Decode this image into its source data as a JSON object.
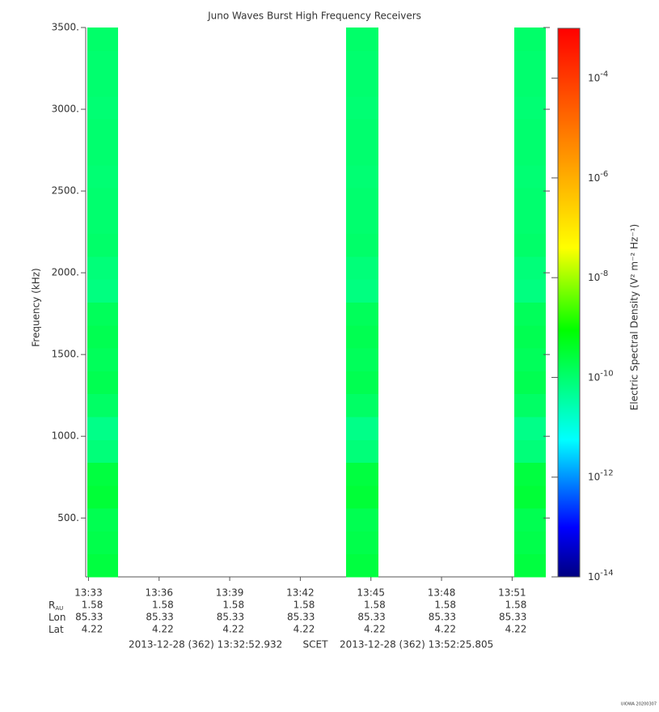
{
  "chart_data": {
    "type": "spectrogram",
    "title": "Juno Waves Burst High Frequency Receivers",
    "y_label": "Frequency (kHz)",
    "colorbar_label": "Electric Spectral Density (V² m⁻² Hz⁻¹)",
    "ylim": [
      140,
      3500
    ],
    "yticks": [
      {
        "value": 500,
        "label": "500."
      },
      {
        "value": 1000,
        "label": "1000."
      },
      {
        "value": 1500,
        "label": "1500."
      },
      {
        "value": 2000,
        "label": "2000."
      },
      {
        "value": 2500,
        "label": "2500."
      },
      {
        "value": 3000,
        "label": "3000."
      },
      {
        "value": 3500,
        "label": "3500."
      }
    ],
    "xlim": [
      812.882,
      832.43
    ],
    "xticks": [
      {
        "value": 813,
        "label": "13:33"
      },
      {
        "value": 816,
        "label": "13:36"
      },
      {
        "value": 819,
        "label": "13:39"
      },
      {
        "value": 822,
        "label": "13:42"
      },
      {
        "value": 825,
        "label": "13:45"
      },
      {
        "value": 828,
        "label": "13:48"
      },
      {
        "value": 831,
        "label": "13:51"
      }
    ],
    "zlim": [
      1e-14,
      0.001
    ],
    "zticks": [
      {
        "value": 1e-14,
        "label": "10",
        "exponent": "-14"
      },
      {
        "value": 1e-12,
        "label": "10",
        "exponent": "-12"
      },
      {
        "value": 1e-10,
        "label": "10",
        "exponent": "-10"
      },
      {
        "value": 1e-08,
        "label": "10",
        "exponent": "-8"
      },
      {
        "value": 1e-06,
        "label": "10",
        "exponent": "-6"
      },
      {
        "value": 0.0001,
        "label": "10",
        "exponent": "-4"
      }
    ],
    "freq_bins": [
      140,
      280,
      420,
      560,
      700,
      840,
      980,
      1120,
      1260,
      1400,
      1540,
      1680,
      1820,
      1960,
      2100,
      2240,
      2380,
      2520,
      2660,
      2800,
      2940,
      3080,
      3220,
      3360,
      3500
    ],
    "bursts": [
      {
        "start": 812.95,
        "end": 814.26,
        "values": [
          2.5e-10,
          2e-10,
          1.8e-10,
          3e-10,
          2.5e-10,
          8e-11,
          6e-11,
          1.2e-10,
          1.8e-10,
          1.5e-10,
          1.8e-10,
          1.5e-10,
          7e-11,
          8e-11,
          1.1e-10,
          1e-10,
          1e-10,
          9e-11,
          1e-10,
          1e-10,
          9e-11,
          1e-10,
          1e-10,
          1.1e-10
        ]
      },
      {
        "start": 823.94,
        "end": 825.32,
        "values": [
          2.5e-10,
          2e-10,
          1.8e-10,
          3e-10,
          2.5e-10,
          8e-11,
          6e-11,
          1.2e-10,
          1.8e-10,
          1.5e-10,
          1.8e-10,
          1.5e-10,
          7e-11,
          8e-11,
          1.1e-10,
          1e-10,
          1e-10,
          9e-11,
          1e-10,
          1e-10,
          9e-11,
          1e-10,
          1e-10,
          1.1e-10
        ]
      },
      {
        "start": 831.09,
        "end": 832.43,
        "values": [
          2.5e-10,
          2e-10,
          1.8e-10,
          3e-10,
          2.5e-10,
          8e-11,
          6e-11,
          1.2e-10,
          1.8e-10,
          1.5e-10,
          1.8e-10,
          1.5e-10,
          7e-11,
          8e-11,
          1.1e-10,
          1e-10,
          1e-10,
          9e-11,
          1e-10,
          1e-10,
          9e-11,
          1e-10,
          1e-10,
          1.1e-10
        ]
      }
    ],
    "ephemeris": [
      {
        "label": "R",
        "sub": "AU",
        "values": [
          1.58,
          1.58,
          1.58,
          1.58,
          1.58,
          1.58,
          1.58
        ]
      },
      {
        "label": "Lon",
        "values": [
          85.33,
          85.33,
          85.33,
          85.33,
          85.33,
          85.33,
          85.33
        ]
      },
      {
        "label": "Lat",
        "values": [
          4.22,
          4.22,
          4.22,
          4.22,
          4.22,
          4.22,
          4.22
        ]
      }
    ],
    "time_start": "2013-12-28 (362) 13:32:52.932",
    "time_system": "SCET",
    "time_end": "2013-12-28 (362) 13:52:25.805",
    "credit": "UIOWA 20200307"
  }
}
